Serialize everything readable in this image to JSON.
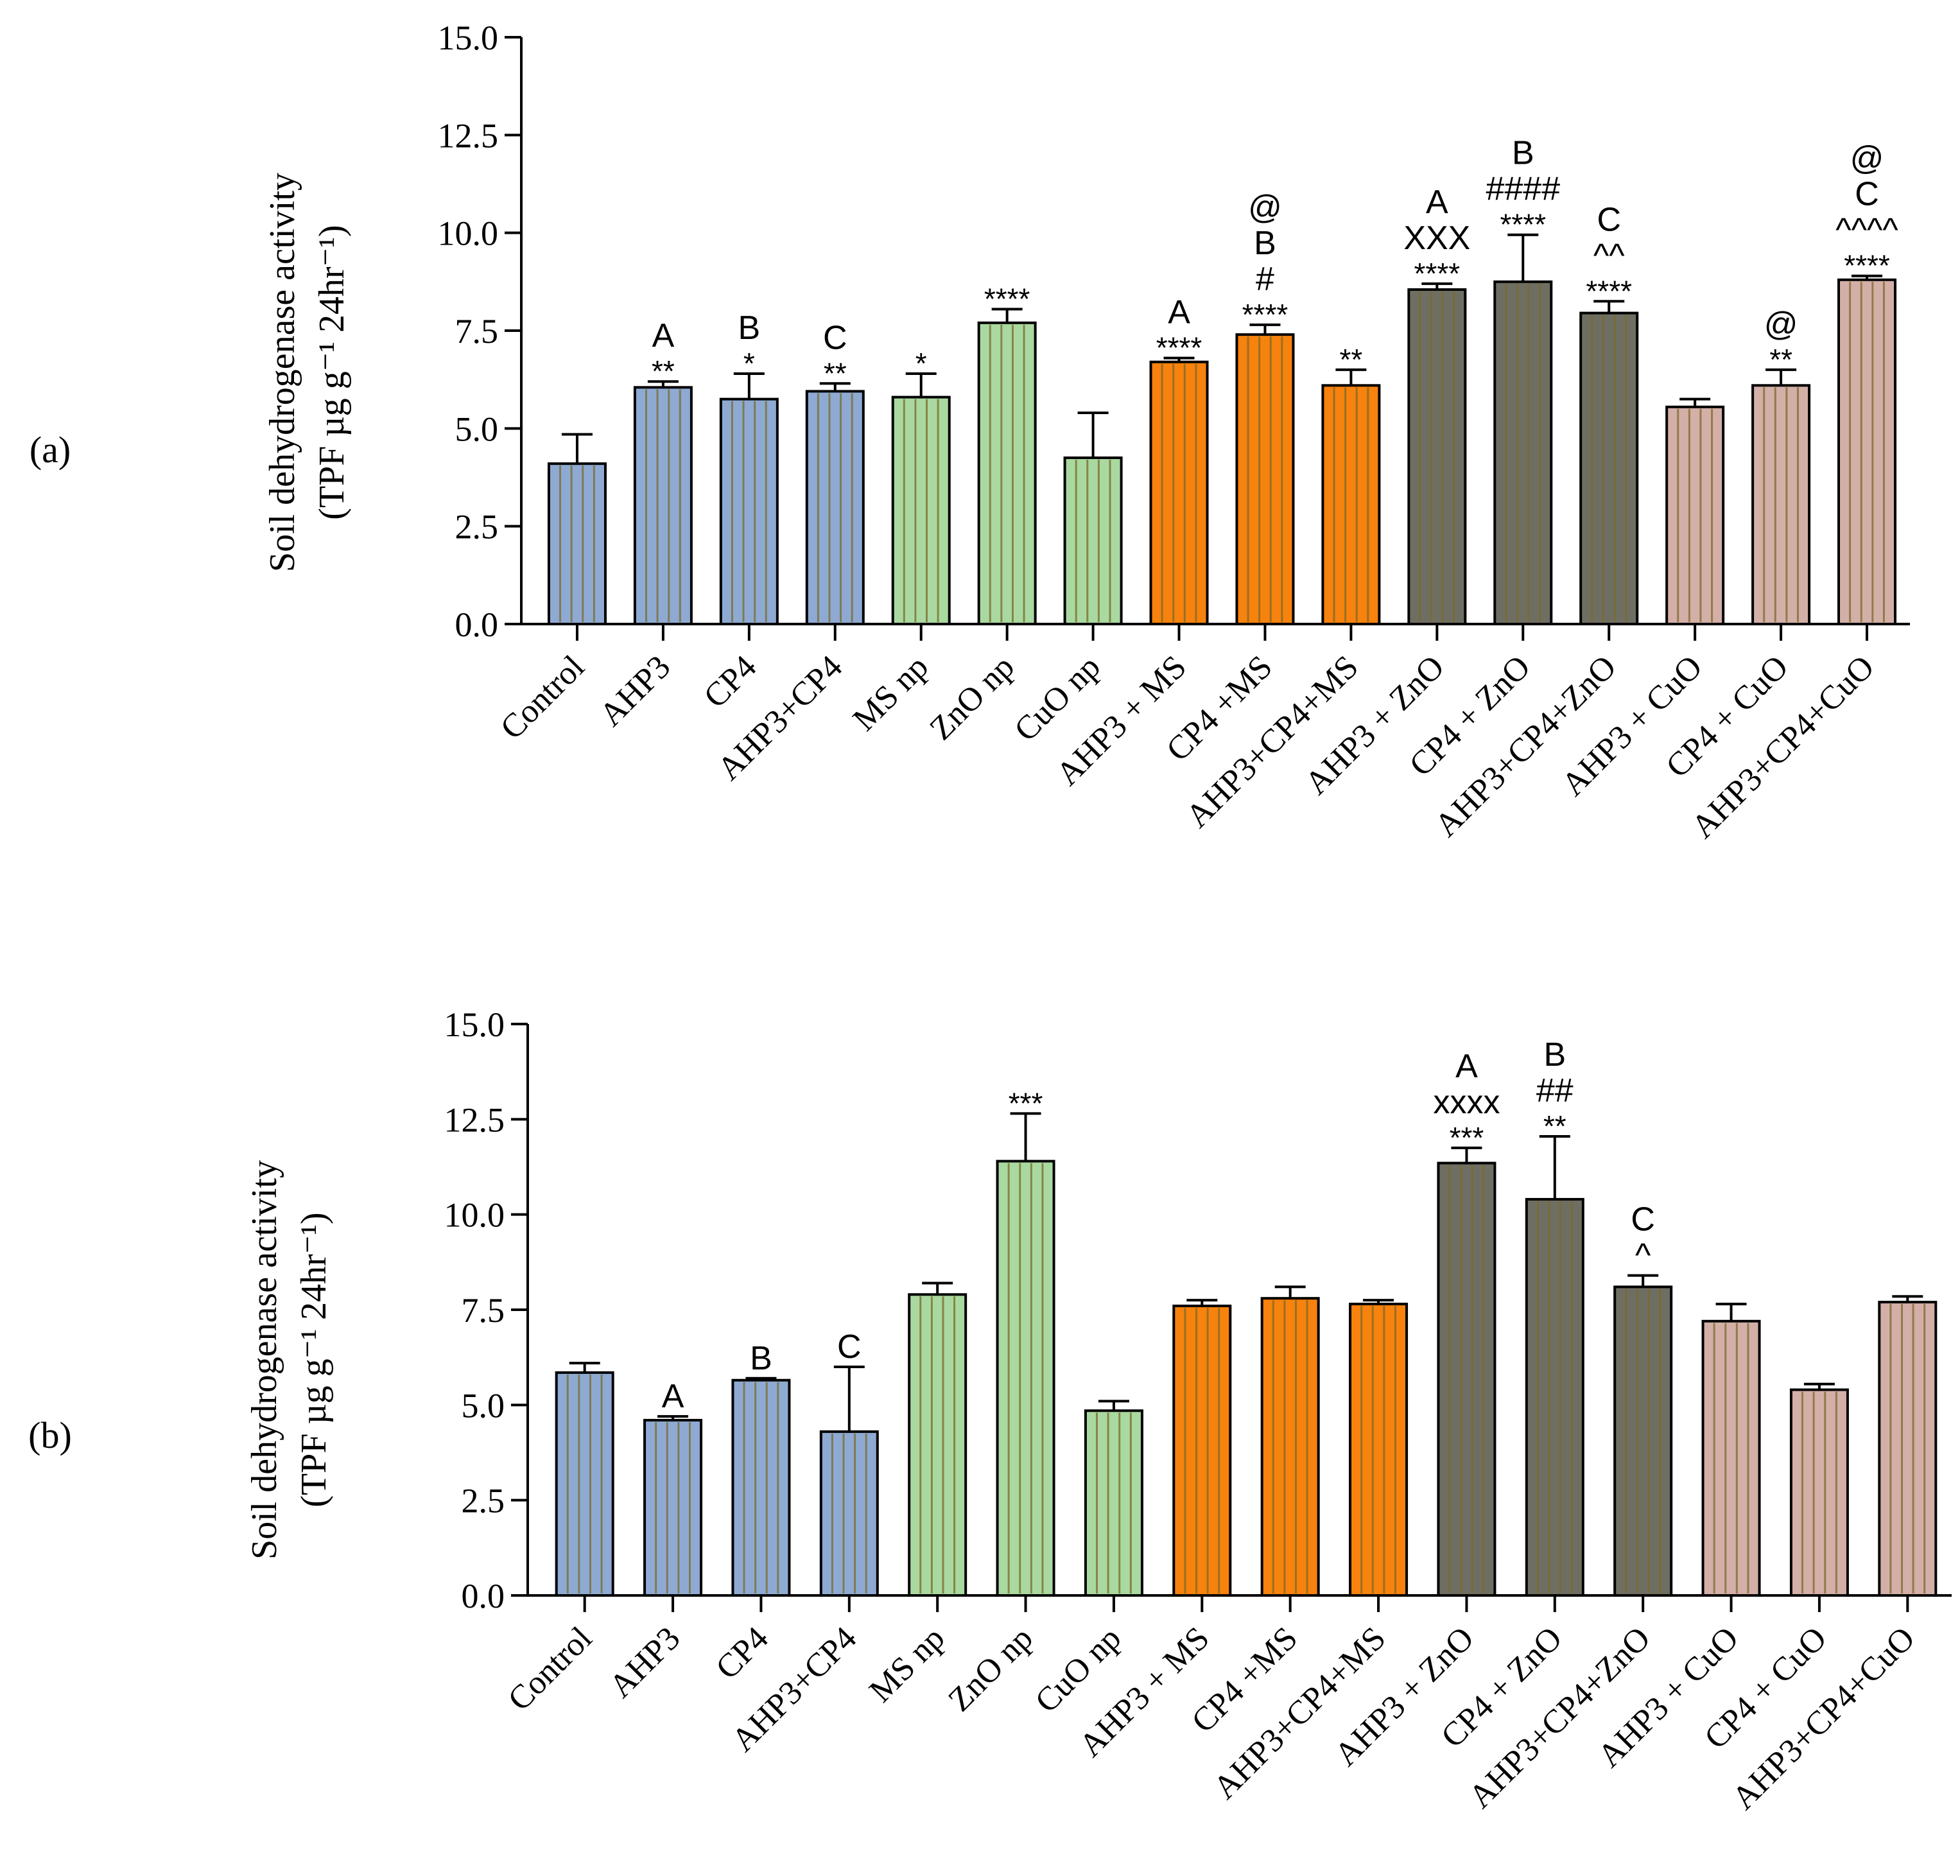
{
  "figure": {
    "panels": [
      {
        "label": "(a)",
        "label_letter": "a"
      },
      {
        "label": "(b)",
        "label_letter": "b"
      }
    ]
  },
  "colors": {
    "blue": "#8eaad3",
    "green": "#a9d9a0",
    "orange": "#f7820d",
    "gray": "#6f6e63",
    "pink": "#d3afa8",
    "stripe": "#7a6a2a"
  },
  "chart_data": [
    {
      "type": "bar",
      "panel": "(a)",
      "title": "",
      "xlabel": "",
      "ylabel": "Soil dehydrogenase activity",
      "ylabel_units": "(TPF µg g⁻¹ 24hr⁻¹)",
      "ylim": [
        0,
        15
      ],
      "yticks": [
        "0.0",
        "2.5",
        "5.0",
        "7.5",
        "10.0",
        "12.5",
        "15.0"
      ],
      "categories": [
        "Control",
        "AHP3",
        "CP4",
        "AHP3+CP4",
        "MS np",
        "ZnO np",
        "CuO np",
        "AHP3 + MS",
        "CP4 +MS",
        "AHP3+CP4+MS",
        "AHP3 + ZnO",
        "CP4 + ZnO",
        "AHP3+CP4+ZnO",
        "AHP3 + CuO",
        "CP4 + CuO",
        "AHP3+CP4+CuO"
      ],
      "groups": [
        "blue",
        "blue",
        "blue",
        "blue",
        "green",
        "green",
        "green",
        "orange",
        "orange",
        "orange",
        "gray",
        "gray",
        "gray",
        "pink",
        "pink",
        "pink"
      ],
      "values": [
        4.1,
        6.05,
        5.75,
        5.95,
        5.8,
        7.7,
        4.25,
        6.7,
        7.4,
        6.1,
        8.55,
        8.75,
        7.95,
        5.55,
        6.1,
        8.8
      ],
      "errors": [
        0.75,
        0.15,
        0.65,
        0.2,
        0.6,
        0.35,
        1.15,
        0.1,
        0.25,
        0.4,
        0.15,
        1.2,
        0.3,
        0.2,
        0.4,
        0.1
      ],
      "annotations": [
        [],
        [
          "A",
          "**"
        ],
        [
          "B",
          "*"
        ],
        [
          "C",
          "**"
        ],
        [
          "*"
        ],
        [
          "****"
        ],
        [],
        [
          "A",
          "****"
        ],
        [
          "@",
          "B",
          "#",
          "****"
        ],
        [
          "**"
        ],
        [
          "A",
          "XXX",
          "****"
        ],
        [
          "B",
          "####",
          "****"
        ],
        [
          "C",
          "^^",
          "****"
        ],
        [],
        [
          "@",
          "**"
        ],
        [
          "@",
          "C",
          "^^^^",
          "****"
        ]
      ]
    },
    {
      "type": "bar",
      "panel": "(b)",
      "title": "",
      "xlabel": "",
      "ylabel": "Soil dehydrogenase activity",
      "ylabel_units": "(TPF µg g⁻¹ 24hr⁻¹)",
      "ylim": [
        0,
        15
      ],
      "yticks": [
        "0.0",
        "2.5",
        "5.0",
        "7.5",
        "10.0",
        "12.5",
        "15.0"
      ],
      "categories": [
        "Control",
        "AHP3",
        "CP4",
        "AHP3+CP4",
        "MS np",
        "ZnO np",
        "CuO np",
        "AHP3 + MS",
        "CP4 +MS",
        "AHP3+CP4+MS",
        "AHP3 + ZnO",
        "CP4 + ZnO",
        "AHP3+CP4+ZnO",
        "AHP3 + CuO",
        "CP4 + CuO",
        "AHP3+CP4+CuO"
      ],
      "groups": [
        "blue",
        "blue",
        "blue",
        "blue",
        "green",
        "green",
        "green",
        "orange",
        "orange",
        "orange",
        "gray",
        "gray",
        "gray",
        "pink",
        "pink",
        "pink"
      ],
      "values": [
        5.85,
        4.6,
        5.65,
        4.3,
        7.9,
        11.4,
        4.85,
        7.6,
        7.8,
        7.65,
        11.35,
        10.4,
        8.1,
        7.2,
        5.4,
        7.7
      ],
      "errors": [
        0.25,
        0.1,
        0.05,
        1.7,
        0.3,
        1.25,
        0.25,
        0.15,
        0.3,
        0.1,
        0.4,
        1.65,
        0.3,
        0.45,
        0.15,
        0.15
      ],
      "annotations": [
        [],
        [
          "A"
        ],
        [
          "B"
        ],
        [
          "C"
        ],
        [],
        [
          "***"
        ],
        [],
        [],
        [],
        [],
        [
          "A",
          "xxxx",
          "***"
        ],
        [
          "B",
          "##",
          "**"
        ],
        [
          "C",
          "^"
        ],
        [],
        [],
        []
      ]
    }
  ]
}
